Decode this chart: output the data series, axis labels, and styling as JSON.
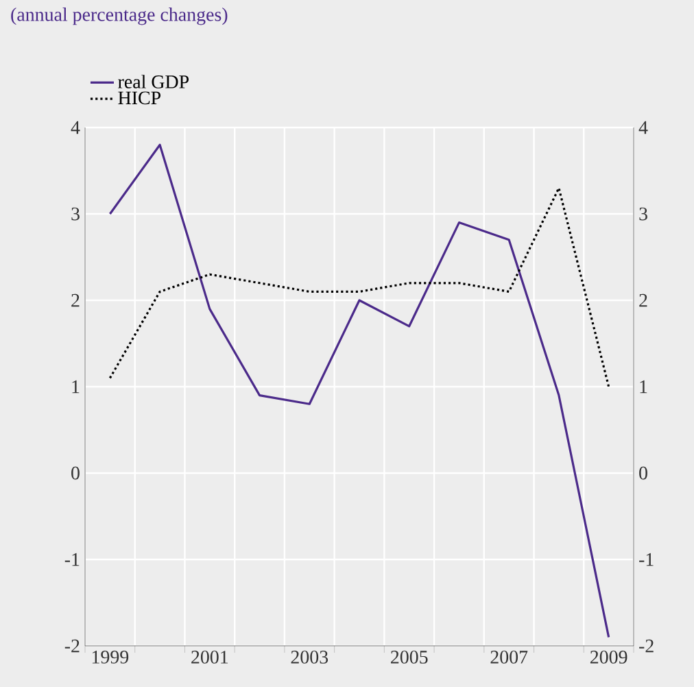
{
  "chart_data": {
    "type": "line",
    "title": "(annual percentage changes)",
    "categories": [
      "1999",
      null,
      "2001",
      null,
      "2003",
      null,
      "2005",
      null,
      "2007",
      null,
      "2009"
    ],
    "series": [
      {
        "name": "real GDP",
        "color": "#4b2a8a",
        "line_style": "solid",
        "values": [
          3.0,
          3.8,
          1.9,
          0.9,
          0.8,
          2.0,
          1.7,
          2.9,
          2.7,
          0.9,
          -1.9
        ]
      },
      {
        "name": "HICP",
        "color": "#000000",
        "line_style": "dotted",
        "values": [
          1.1,
          2.1,
          2.3,
          2.2,
          2.1,
          2.1,
          2.2,
          2.2,
          2.1,
          3.3,
          1.0
        ]
      }
    ],
    "ylim": [
      -2,
      4
    ],
    "yticks": [
      -2,
      -1,
      0,
      1,
      2,
      3,
      4
    ],
    "y2lim": [
      -2,
      4
    ],
    "y2ticks": [
      -2,
      -1,
      0,
      1,
      2,
      3,
      4
    ],
    "grid": true,
    "legend": "top left",
    "marker": "none"
  }
}
